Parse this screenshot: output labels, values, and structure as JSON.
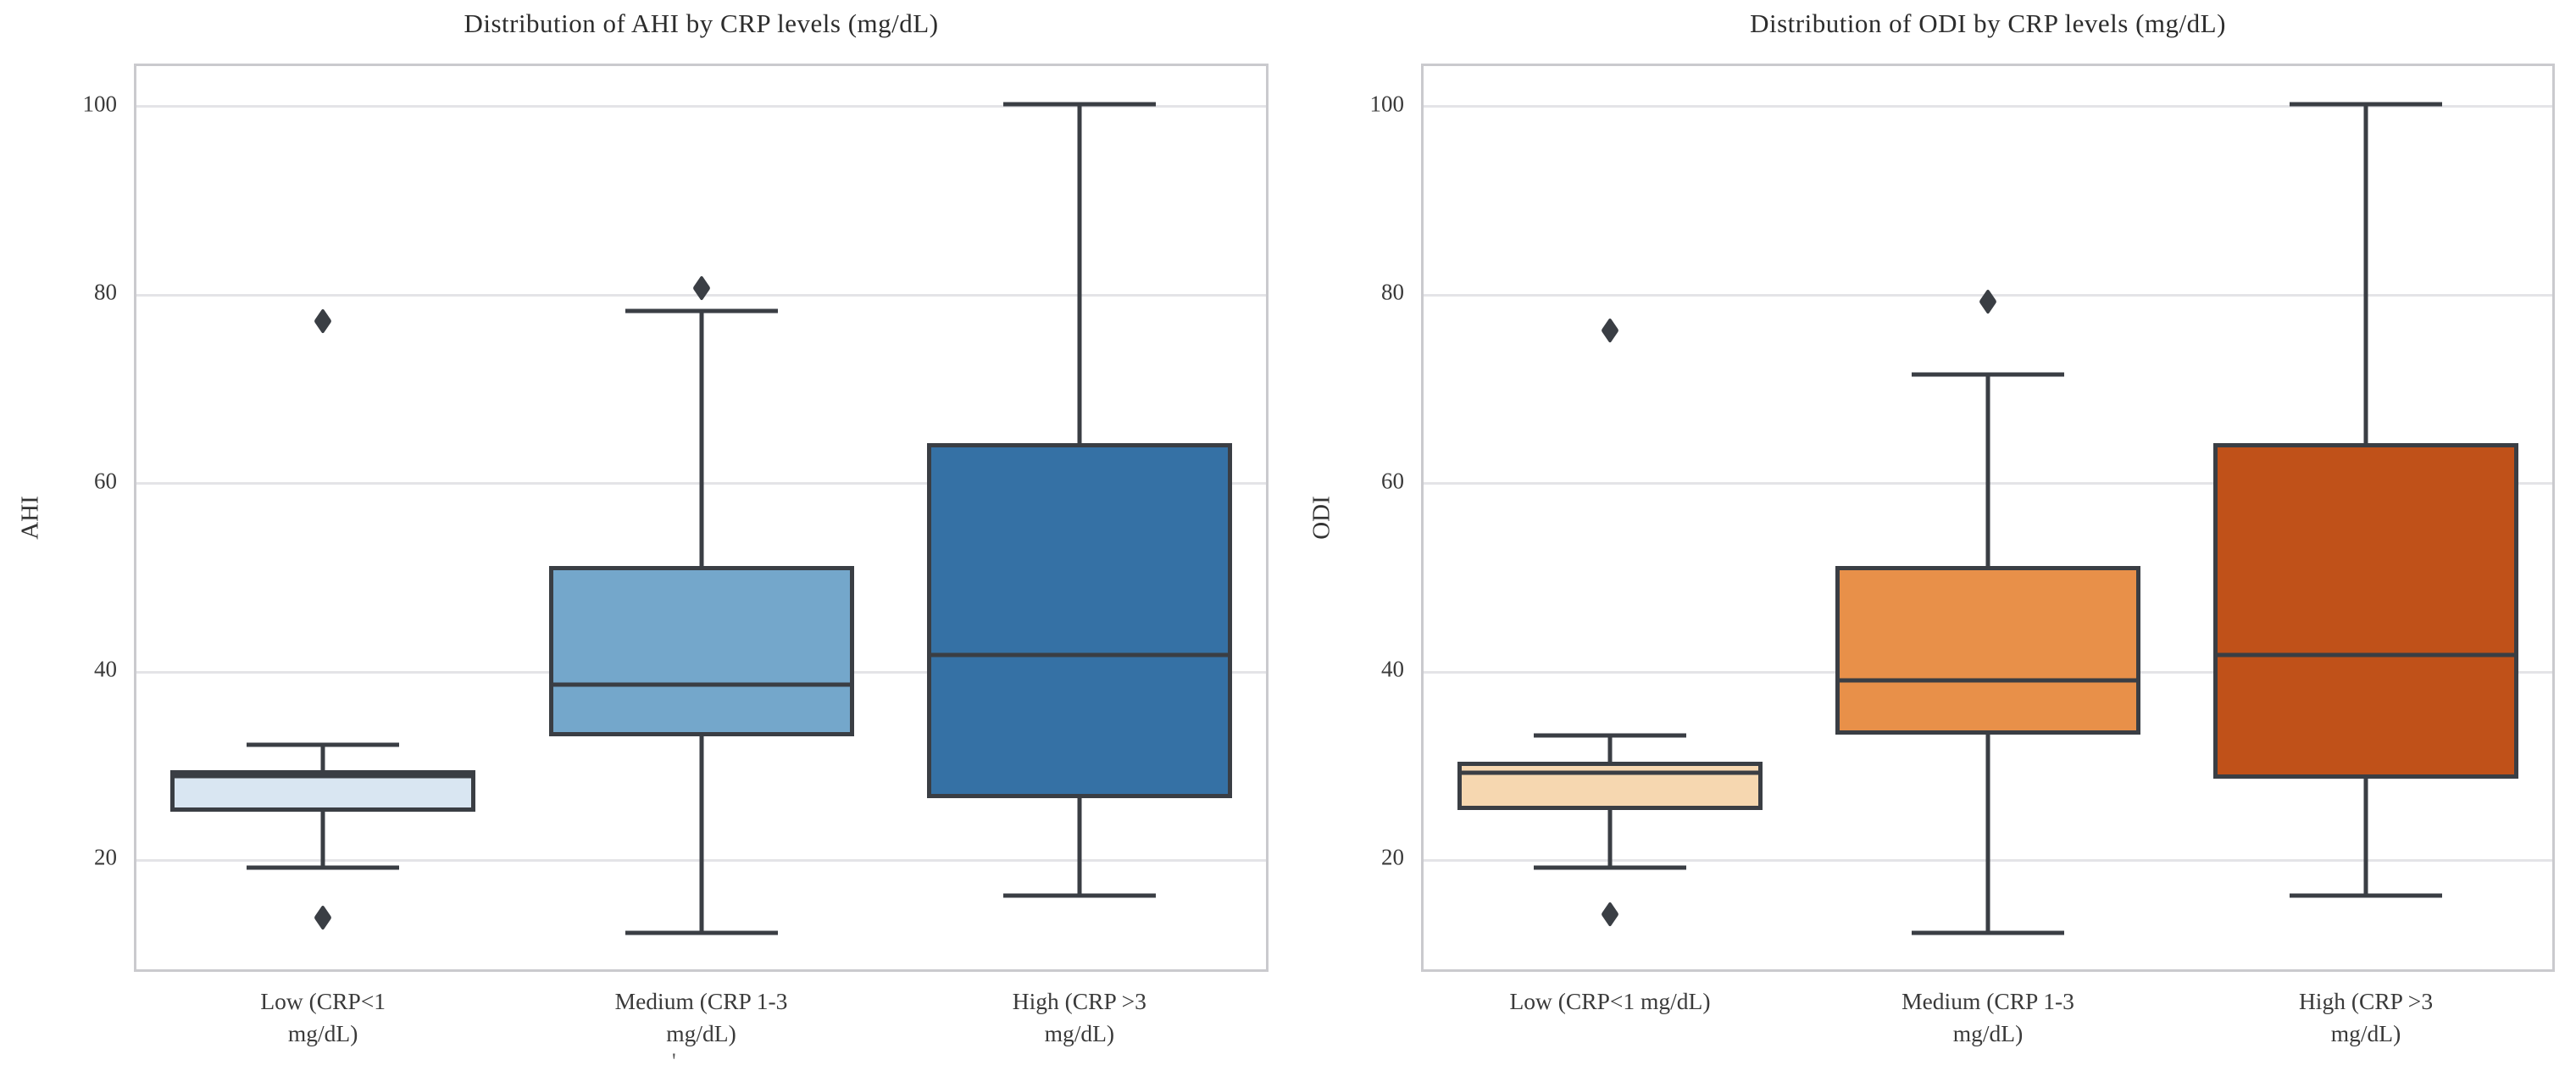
{
  "figure": {
    "background": "#ffffff",
    "grid_color": "#e4e4e7",
    "spine_color": "#cacace",
    "box_edge_color": "#3a3e44",
    "outlier_color": "#3a3e44",
    "grid": "horizontal-only",
    "legend": "none"
  },
  "chart_data": [
    {
      "type": "boxplot",
      "title": "Distribution of AHI by CRP levels (mg/dL)",
      "ylabel": "AHI",
      "xlabel": "",
      "ylim": [
        7.9,
        104.3
      ],
      "yticks": [
        20,
        40,
        60,
        80,
        100
      ],
      "categories": [
        "Low (CRP<1\nmg/dL)",
        "Medium (CRP 1-3\nmg/dL)",
        "High (CRP >3\nmg/dL)"
      ],
      "series": [
        {
          "group": "Low (CRP<1 mg/dL)",
          "color": "#d9e6f2",
          "whisker_low": 19,
          "q1": 24.9,
          "median": 28.7,
          "q3": 29.3,
          "whisker_high": 32,
          "outliers": [
            77,
            13.7
          ]
        },
        {
          "group": "Medium (CRP 1-3 mg/dL)",
          "color": "#74a7cb",
          "whisker_low": 12,
          "q1": 32.9,
          "median": 38.4,
          "q3": 51,
          "whisker_high": 78,
          "outliers": [
            80.5
          ]
        },
        {
          "group": "High (CRP >3 mg/dL)",
          "color": "#3571a5",
          "whisker_low": 16,
          "q1": 26.3,
          "median": 41.5,
          "q3": 64,
          "whisker_high": 100,
          "outliers": []
        }
      ]
    },
    {
      "type": "boxplot",
      "title": "Distribution of ODI by CRP levels (mg/dL)",
      "ylabel": "ODI",
      "xlabel": "",
      "ylim": [
        7.9,
        104.3
      ],
      "yticks": [
        20,
        40,
        60,
        80,
        100
      ],
      "categories": [
        "Low (CRP<1 mg/dL)",
        "Medium (CRP 1-3\nmg/dL)",
        "High (CRP >3\nmg/dL)"
      ],
      "series": [
        {
          "group": "Low (CRP<1 mg/dL)",
          "color": "#f6d7b0",
          "whisker_low": 19,
          "q1": 25.1,
          "median": 29,
          "q3": 30.2,
          "whisker_high": 33,
          "outliers": [
            76,
            14
          ]
        },
        {
          "group": "Medium (CRP 1-3 mg/dL)",
          "color": "#e89049",
          "whisker_low": 12,
          "q1": 33.1,
          "median": 38.8,
          "q3": 51,
          "whisker_high": 71.3,
          "outliers": [
            79
          ]
        },
        {
          "group": "High (CRP >3 mg/dL)",
          "color": "#c05119",
          "whisker_low": 16,
          "q1": 28.4,
          "median": 41.5,
          "q3": 64,
          "whisker_high": 100,
          "outliers": []
        }
      ]
    }
  ],
  "artifacts": {
    "stray_mark": "'"
  }
}
